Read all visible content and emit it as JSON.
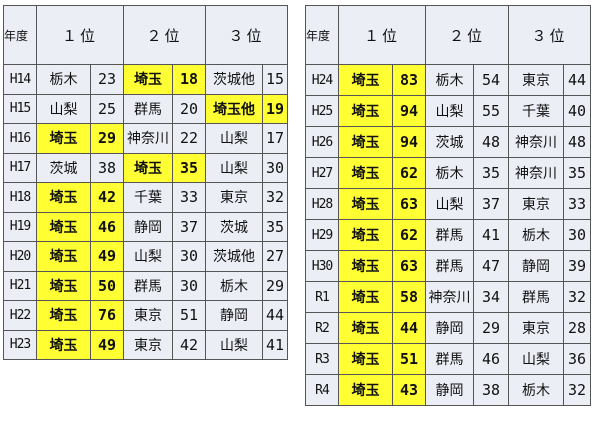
{
  "header": {
    "year": "年度",
    "first": "１位",
    "second": "２位",
    "third": "３位"
  },
  "highlight_color": "#ffff33",
  "tables": [
    {
      "rows": [
        {
          "year": "H14",
          "c": [
            [
              "栃木",
              "23",
              false
            ],
            [
              "埼玉",
              "18",
              true
            ],
            [
              "茨城他",
              "15",
              false
            ]
          ]
        },
        {
          "year": "H15",
          "c": [
            [
              "山梨",
              "25",
              false
            ],
            [
              "群馬",
              "20",
              false
            ],
            [
              "埼玉他",
              "19",
              true
            ]
          ]
        },
        {
          "year": "H16",
          "c": [
            [
              "埼玉",
              "29",
              true
            ],
            [
              "神奈川",
              "22",
              false
            ],
            [
              "山梨",
              "17",
              false
            ]
          ]
        },
        {
          "year": "H17",
          "c": [
            [
              "茨城",
              "38",
              false
            ],
            [
              "埼玉",
              "35",
              true
            ],
            [
              "山梨",
              "30",
              false
            ]
          ]
        },
        {
          "year": "H18",
          "c": [
            [
              "埼玉",
              "42",
              true
            ],
            [
              "千葉",
              "33",
              false
            ],
            [
              "東京",
              "32",
              false
            ]
          ]
        },
        {
          "year": "H19",
          "c": [
            [
              "埼玉",
              "46",
              true
            ],
            [
              "静岡",
              "37",
              false
            ],
            [
              "茨城",
              "35",
              false
            ]
          ]
        },
        {
          "year": "H20",
          "c": [
            [
              "埼玉",
              "49",
              true
            ],
            [
              "山梨",
              "30",
              false
            ],
            [
              "茨城他",
              "27",
              false
            ]
          ]
        },
        {
          "year": "H21",
          "c": [
            [
              "埼玉",
              "50",
              true
            ],
            [
              "群馬",
              "30",
              false
            ],
            [
              "栃木",
              "29",
              false
            ]
          ]
        },
        {
          "year": "H22",
          "c": [
            [
              "埼玉",
              "76",
              true
            ],
            [
              "東京",
              "51",
              false
            ],
            [
              "静岡",
              "44",
              false
            ]
          ]
        },
        {
          "year": "H23",
          "c": [
            [
              "埼玉",
              "49",
              true
            ],
            [
              "東京",
              "42",
              false
            ],
            [
              "山梨",
              "41",
              false
            ]
          ]
        }
      ]
    },
    {
      "rows": [
        {
          "year": "H24",
          "c": [
            [
              "埼玉",
              "83",
              true
            ],
            [
              "栃木",
              "54",
              false
            ],
            [
              "東京",
              "44",
              false
            ]
          ]
        },
        {
          "year": "H25",
          "c": [
            [
              "埼玉",
              "94",
              true
            ],
            [
              "山梨",
              "55",
              false
            ],
            [
              "千葉",
              "40",
              false
            ]
          ]
        },
        {
          "year": "H26",
          "c": [
            [
              "埼玉",
              "94",
              true
            ],
            [
              "茨城",
              "48",
              false
            ],
            [
              "神奈川",
              "48",
              false
            ]
          ]
        },
        {
          "year": "H27",
          "c": [
            [
              "埼玉",
              "62",
              true
            ],
            [
              "栃木",
              "35",
              false
            ],
            [
              "神奈川",
              "35",
              false
            ]
          ]
        },
        {
          "year": "H28",
          "c": [
            [
              "埼玉",
              "63",
              true
            ],
            [
              "山梨",
              "37",
              false
            ],
            [
              "東京",
              "33",
              false
            ]
          ]
        },
        {
          "year": "H29",
          "c": [
            [
              "埼玉",
              "62",
              true
            ],
            [
              "群馬",
              "41",
              false
            ],
            [
              "栃木",
              "30",
              false
            ]
          ]
        },
        {
          "year": "H30",
          "c": [
            [
              "埼玉",
              "63",
              true
            ],
            [
              "群馬",
              "47",
              false
            ],
            [
              "静岡",
              "39",
              false
            ]
          ]
        },
        {
          "year": "R1",
          "c": [
            [
              "埼玉",
              "58",
              true
            ],
            [
              "神奈川",
              "34",
              false
            ],
            [
              "群馬",
              "32",
              false
            ]
          ]
        },
        {
          "year": "R2",
          "c": [
            [
              "埼玉",
              "44",
              true
            ],
            [
              "静岡",
              "29",
              false
            ],
            [
              "東京",
              "28",
              false
            ]
          ]
        },
        {
          "year": "R3",
          "c": [
            [
              "埼玉",
              "51",
              true
            ],
            [
              "群馬",
              "46",
              false
            ],
            [
              "山梨",
              "36",
              false
            ]
          ]
        },
        {
          "year": "R4",
          "c": [
            [
              "埼玉",
              "43",
              true
            ],
            [
              "静岡",
              "38",
              false
            ],
            [
              "栃木",
              "32",
              false
            ]
          ]
        }
      ]
    }
  ]
}
